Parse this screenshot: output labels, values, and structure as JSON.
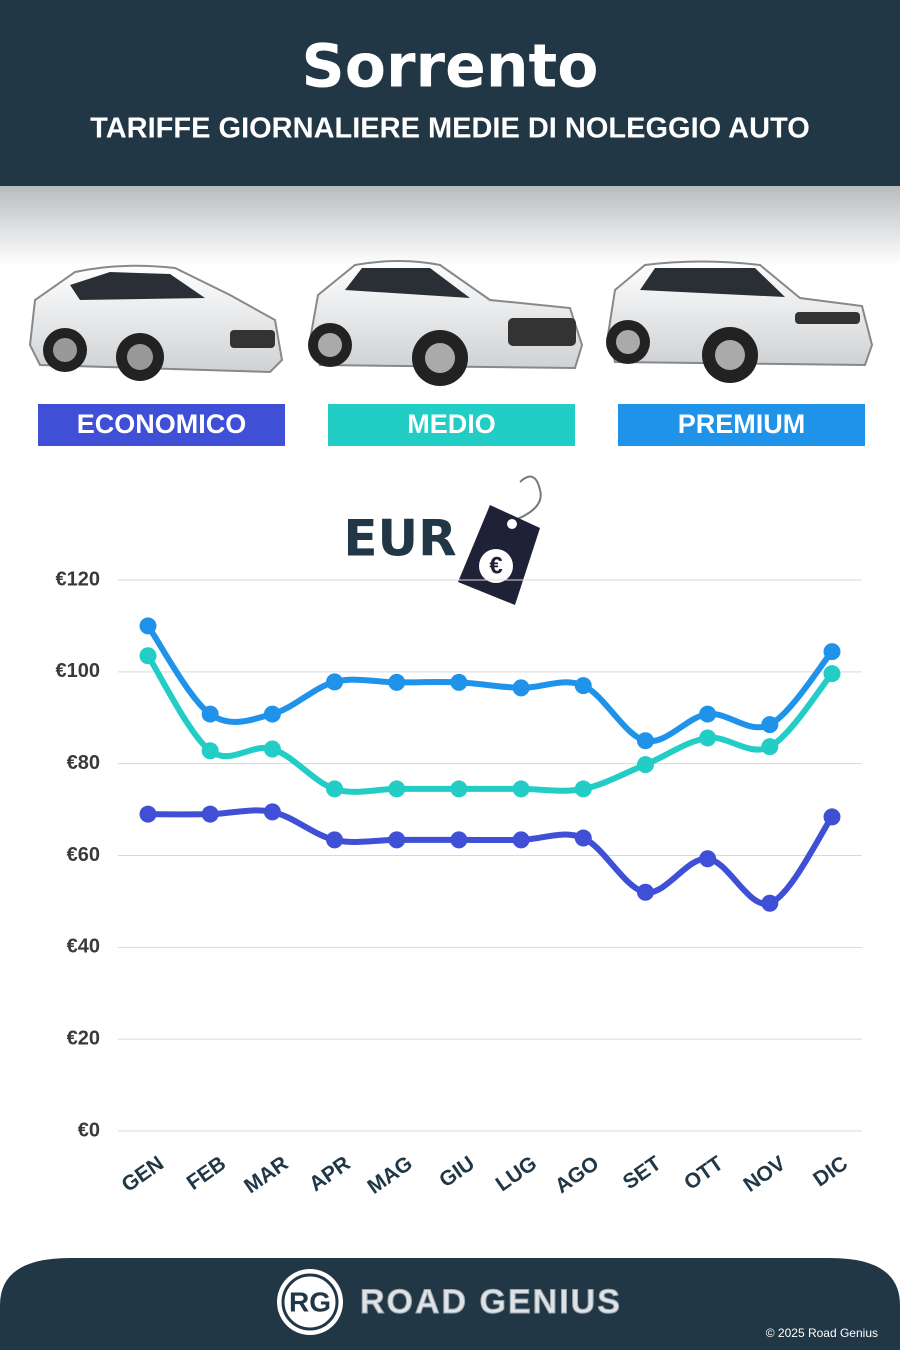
{
  "chart_data": {
    "type": "line",
    "title": "Sorrento",
    "subtitle": "TARIFFE GIORNALIERE MEDIE DI NOLEGGIO AUTO",
    "categories": [
      "GEN",
      "FEB",
      "MAR",
      "APR",
      "MAG",
      "GIU",
      "LUG",
      "AGO",
      "SET",
      "OTT",
      "NOV",
      "DIC"
    ],
    "series": [
      {
        "name": "ECONOMICO",
        "color": "#3f4fd6",
        "values": [
          69,
          69,
          69.5,
          63.4,
          63.4,
          63.4,
          63.4,
          63.8,
          52,
          59.3,
          49.6,
          68.4
        ]
      },
      {
        "name": "MEDIO",
        "color": "#22cdc6",
        "values": [
          103.5,
          82.8,
          83.2,
          74.5,
          74.5,
          74.5,
          74.5,
          74.5,
          79.8,
          85.6,
          83.7,
          99.6
        ]
      },
      {
        "name": "PREMIUM",
        "color": "#1f93ea",
        "values": [
          110,
          90.8,
          90.8,
          97.8,
          97.7,
          97.7,
          96.5,
          97,
          85,
          90.8,
          88.5,
          104.4
        ]
      }
    ],
    "ylim": [
      0,
      120
    ],
    "yticks": [
      {
        "value": 0,
        "label": "€0"
      },
      {
        "value": 20,
        "label": "€20"
      },
      {
        "value": 40,
        "label": "€40"
      },
      {
        "value": 60,
        "label": "€60"
      },
      {
        "value": 80,
        "label": "€80"
      },
      {
        "value": 100,
        "label": "€100"
      },
      {
        "value": 120,
        "label": "€120"
      }
    ],
    "grid": true,
    "currency_badge": "EUR",
    "tag_symbol": "€"
  },
  "footer": {
    "logo": "RG",
    "brand": "ROAD GENIUS",
    "copyright": "© 2025 Road Genius"
  }
}
